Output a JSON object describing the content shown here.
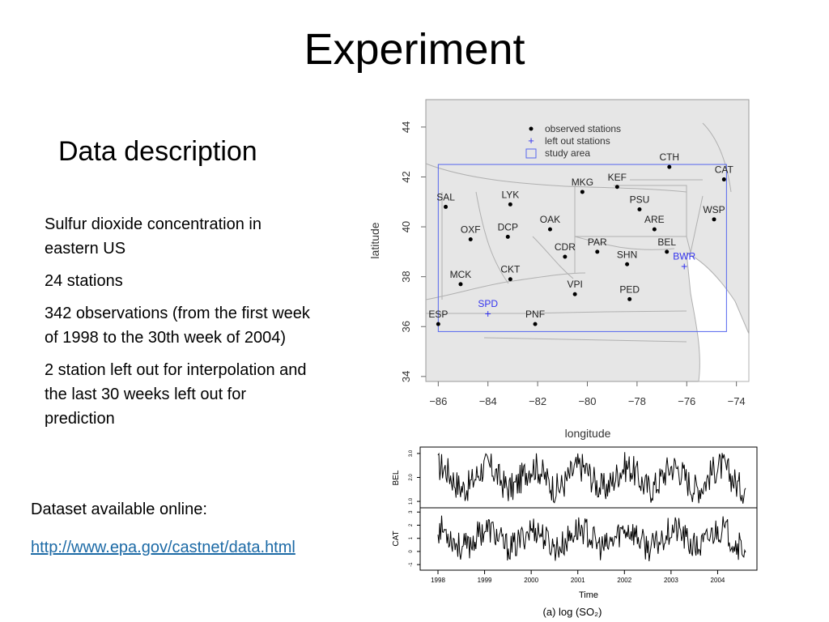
{
  "slide": {
    "title": "Experiment",
    "subtitle": "Data description",
    "bullets": [
      "Sulfur dioxide concentration in eastern US",
      "24 stations",
      "342 observations (from the first week of 1998 to the 30th week of 2004)",
      "2 station left out for interpolation and the last 30 weeks left out  for prediction"
    ],
    "dataset_text": "Dataset available online:",
    "dataset_link": "http://www.epa.gov/castnet/data.html"
  },
  "chart_data": [
    {
      "type": "scatter",
      "xlabel": "longitude",
      "ylabel": "latitude",
      "xlim": [
        -86.5,
        -73.5
      ],
      "ylim": [
        33.8,
        45.1
      ],
      "xticks": [
        "−86",
        "−84",
        "−82",
        "−80",
        "−78",
        "−76",
        "−74"
      ],
      "yticks": [
        "34",
        "36",
        "38",
        "40",
        "42",
        "44"
      ],
      "legend": [
        "observed stations",
        "left out stations",
        "study area"
      ],
      "legend_position": "top-center",
      "study_area": {
        "lon": [
          -86.0,
          -74.4
        ],
        "lat": [
          35.8,
          42.5
        ]
      },
      "colors": {
        "observed": "#000000",
        "left_out": "#3333ee",
        "study_area": "#5566ee",
        "land": "#e6e6e6"
      },
      "observed_stations": [
        {
          "name": "SAL",
          "lon": -85.7,
          "lat": 40.8
        },
        {
          "name": "LYK",
          "lon": -83.1,
          "lat": 40.9
        },
        {
          "name": "MKG",
          "lon": -80.2,
          "lat": 41.4
        },
        {
          "name": "KEF",
          "lon": -78.8,
          "lat": 41.6
        },
        {
          "name": "CTH",
          "lon": -76.7,
          "lat": 42.4
        },
        {
          "name": "CAT",
          "lon": -74.5,
          "lat": 41.9
        },
        {
          "name": "PSU",
          "lon": -77.9,
          "lat": 40.7
        },
        {
          "name": "WSP",
          "lon": -74.9,
          "lat": 40.3
        },
        {
          "name": "OXF",
          "lon": -84.7,
          "lat": 39.5
        },
        {
          "name": "DCP",
          "lon": -83.2,
          "lat": 39.6
        },
        {
          "name": "OAK",
          "lon": -81.5,
          "lat": 39.9
        },
        {
          "name": "ARE",
          "lon": -77.3,
          "lat": 39.9
        },
        {
          "name": "PAR",
          "lon": -79.6,
          "lat": 39.0
        },
        {
          "name": "CDR",
          "lon": -80.9,
          "lat": 38.8
        },
        {
          "name": "BEL",
          "lon": -76.8,
          "lat": 39.0
        },
        {
          "name": "SHN",
          "lon": -78.4,
          "lat": 38.5
        },
        {
          "name": "MCK",
          "lon": -85.1,
          "lat": 37.7
        },
        {
          "name": "CKT",
          "lon": -83.1,
          "lat": 37.9
        },
        {
          "name": "VPI",
          "lon": -80.5,
          "lat": 37.3
        },
        {
          "name": "PED",
          "lon": -78.3,
          "lat": 37.1
        },
        {
          "name": "ESP",
          "lon": -86.0,
          "lat": 36.1
        },
        {
          "name": "PNF",
          "lon": -82.1,
          "lat": 36.1
        }
      ],
      "left_out_stations": [
        {
          "name": "BWR",
          "lon": -76.1,
          "lat": 38.4
        },
        {
          "name": "SPD",
          "lon": -84.0,
          "lat": 36.5
        }
      ]
    },
    {
      "type": "line",
      "xlabel": "Time",
      "caption": "(a) log (SO₂)",
      "x_ticks": [
        "1998",
        "1999",
        "2000",
        "2001",
        "2002",
        "2003",
        "2004"
      ],
      "x_range": [
        1998.0,
        2004.6
      ],
      "panels": [
        {
          "name": "BEL",
          "ylim": [
            0.8,
            3.2
          ],
          "yticks": [
            "3.0",
            "2.0",
            "1.0"
          ]
        },
        {
          "name": "CAT",
          "ylim": [
            -1.3,
            3.2
          ],
          "yticks": [
            "3",
            "2",
            "1",
            "0",
            "-1"
          ]
        }
      ]
    }
  ]
}
